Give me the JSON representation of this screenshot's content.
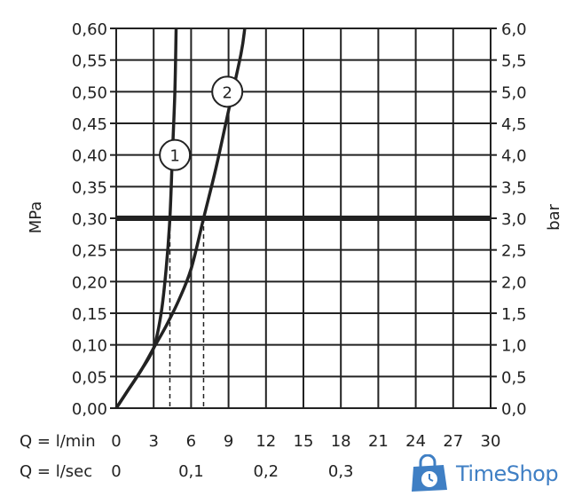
{
  "chart_data": {
    "type": "line",
    "title": "",
    "ylabel_left": "MPa",
    "ylabel_right": "bar",
    "xlabel_primary": "Q = l/min",
    "xlabel_secondary": "Q = l/sec",
    "x_ticks": [
      "0",
      "3",
      "6",
      "9",
      "12",
      "15",
      "18",
      "21",
      "24",
      "27",
      "30"
    ],
    "x_ticks_lsec": [
      "0",
      "0,1",
      "0,2",
      "0,3"
    ],
    "x_ticks_lsec_values": [
      0,
      6,
      12,
      18
    ],
    "y_ticks_left": [
      "0,00",
      "0,05",
      "0,10",
      "0,15",
      "0,20",
      "0,25",
      "0,30",
      "0,35",
      "0,40",
      "0,45",
      "0,50",
      "0,55",
      "0,60"
    ],
    "y_ticks_right": [
      "0,0",
      "0,5",
      "1,0",
      "1,5",
      "2,0",
      "2,5",
      "3,0",
      "3,5",
      "4,0",
      "4,5",
      "5,0",
      "5,5",
      "6,0"
    ],
    "xlim": [
      0,
      30
    ],
    "ylim": [
      0,
      0.6
    ],
    "grid": true,
    "reference_line": {
      "y": 0.3
    },
    "series": [
      {
        "name": "1",
        "points": [
          [
            0,
            0
          ],
          [
            1,
            0.03
          ],
          [
            2,
            0.06
          ],
          [
            3,
            0.095
          ],
          [
            3.6,
            0.15
          ],
          [
            4.0,
            0.22
          ],
          [
            4.3,
            0.3
          ],
          [
            4.5,
            0.4
          ],
          [
            4.7,
            0.5
          ],
          [
            4.8,
            0.6
          ]
        ],
        "marker_label_at": [
          4.7,
          0.4
        ],
        "flow_at_reference": 4.3
      },
      {
        "name": "2",
        "points": [
          [
            0,
            0
          ],
          [
            1,
            0.03
          ],
          [
            2,
            0.06
          ],
          [
            3,
            0.095
          ],
          [
            4,
            0.13
          ],
          [
            5,
            0.17
          ],
          [
            6,
            0.22
          ],
          [
            7,
            0.3
          ],
          [
            8,
            0.38
          ],
          [
            9,
            0.47
          ],
          [
            10,
            0.56
          ],
          [
            10.3,
            0.6
          ]
        ],
        "marker_label_at": [
          8.9,
          0.5
        ],
        "flow_at_reference": 7.0
      }
    ]
  },
  "watermark": {
    "text": "TimeShop",
    "color": "#3f7fc4"
  }
}
